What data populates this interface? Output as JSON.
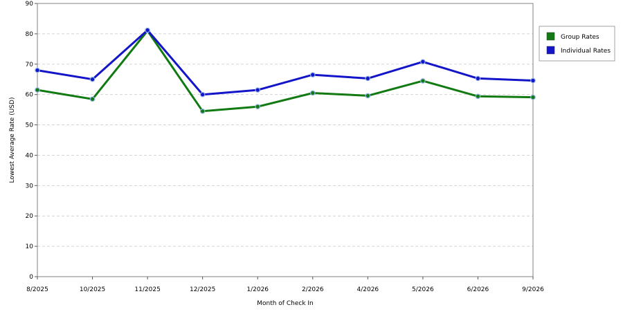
{
  "chart_data": {
    "type": "line",
    "xlabel": "Month of Check In",
    "ylabel": "Lowest Average Rate (USD)",
    "categories": [
      "8/2025",
      "10/2025",
      "11/2025",
      "12/2025",
      "1/2026",
      "2/2026",
      "4/2026",
      "5/2026",
      "6/2026",
      "9/2026"
    ],
    "ylim": [
      0,
      90
    ],
    "yticks": [
      0,
      10,
      20,
      30,
      40,
      50,
      60,
      70,
      80,
      90
    ],
    "grid": "horizontal-dashed",
    "legend_position": "right",
    "series": [
      {
        "name": "Group Rates",
        "color": "#127a12",
        "values": [
          61.5,
          58.5,
          81,
          54.5,
          56,
          60.5,
          59.6,
          64.5,
          59.4,
          59.1
        ]
      },
      {
        "name": "Individual Rates",
        "color": "#1414c8",
        "values": [
          68,
          65,
          81.2,
          60,
          61.5,
          66.5,
          65.3,
          70.8,
          65.3,
          64.6
        ]
      }
    ]
  }
}
